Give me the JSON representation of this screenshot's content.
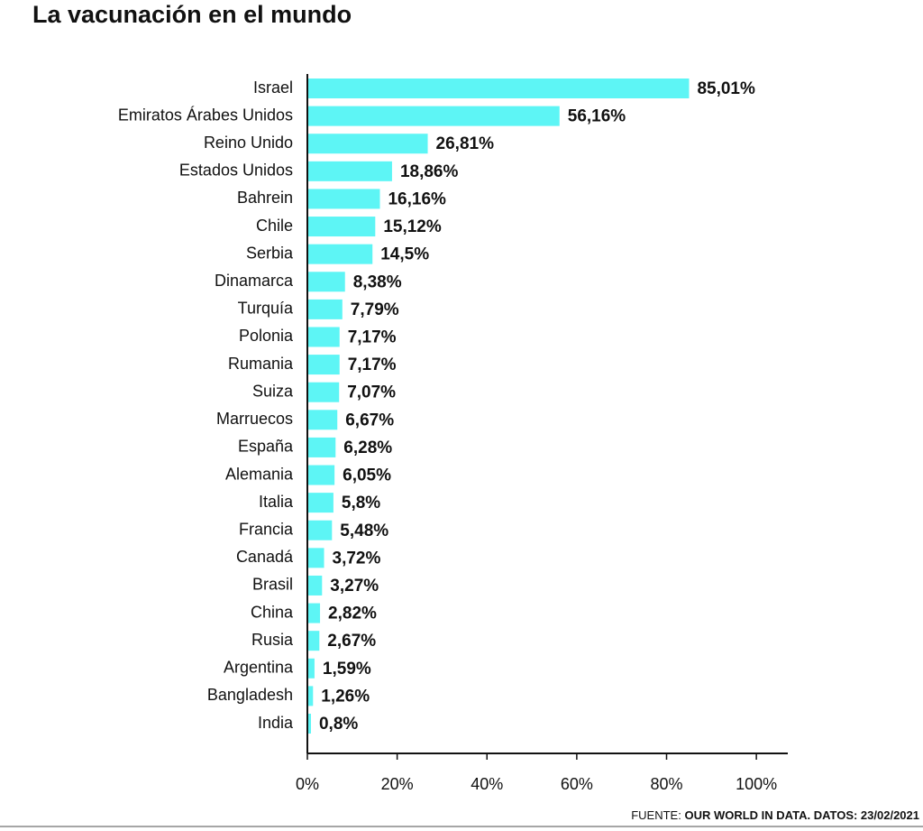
{
  "chart_data": {
    "type": "bar",
    "orientation": "horizontal",
    "title": "La vacunación en el mundo",
    "categories": [
      "Israel",
      "Emiratos Árabes Unidos",
      "Reino Unido",
      "Estados Unidos",
      "Bahrein",
      "Chile",
      "Serbia",
      "Dinamarca",
      "Turquía",
      "Polonia",
      "Rumania",
      "Suiza",
      "Marruecos",
      "España",
      "Alemania",
      "Italia",
      "Francia",
      "Canadá",
      "Brasil",
      "China",
      "Rusia",
      "Argentina",
      "Bangladesh",
      "India"
    ],
    "values": [
      85.01,
      56.16,
      26.81,
      18.86,
      16.16,
      15.12,
      14.5,
      8.38,
      7.79,
      7.17,
      7.17,
      7.07,
      6.67,
      6.28,
      6.05,
      5.8,
      5.48,
      3.72,
      3.27,
      2.82,
      2.67,
      1.59,
      1.26,
      0.8
    ],
    "value_labels": [
      "85,01%",
      "56,16%",
      "26,81%",
      "18,86%",
      "16,16%",
      "15,12%",
      "14,5%",
      "8,38%",
      "7,79%",
      "7,17%",
      "7,17%",
      "7,07%",
      "6,67%",
      "6,28%",
      "6,05%",
      "5,8%",
      "5,48%",
      "3,72%",
      "3,27%",
      "2,82%",
      "2,67%",
      "1,59%",
      "1,26%",
      "0,8%"
    ],
    "color": "#5df5f5",
    "xlim": [
      0,
      107
    ],
    "xticks": [
      {
        "value": 0,
        "label": "0%"
      },
      {
        "value": 20,
        "label": "20%"
      },
      {
        "value": 40,
        "label": "40%"
      },
      {
        "value": 60,
        "label": "60%"
      },
      {
        "value": 80,
        "label": "80%"
      },
      {
        "value": 100,
        "label": "100%"
      }
    ],
    "grid": false,
    "source_label": "FUENTE:",
    "source": "OUR WORLD IN DATA. DATOS: 23/02/2021"
  }
}
